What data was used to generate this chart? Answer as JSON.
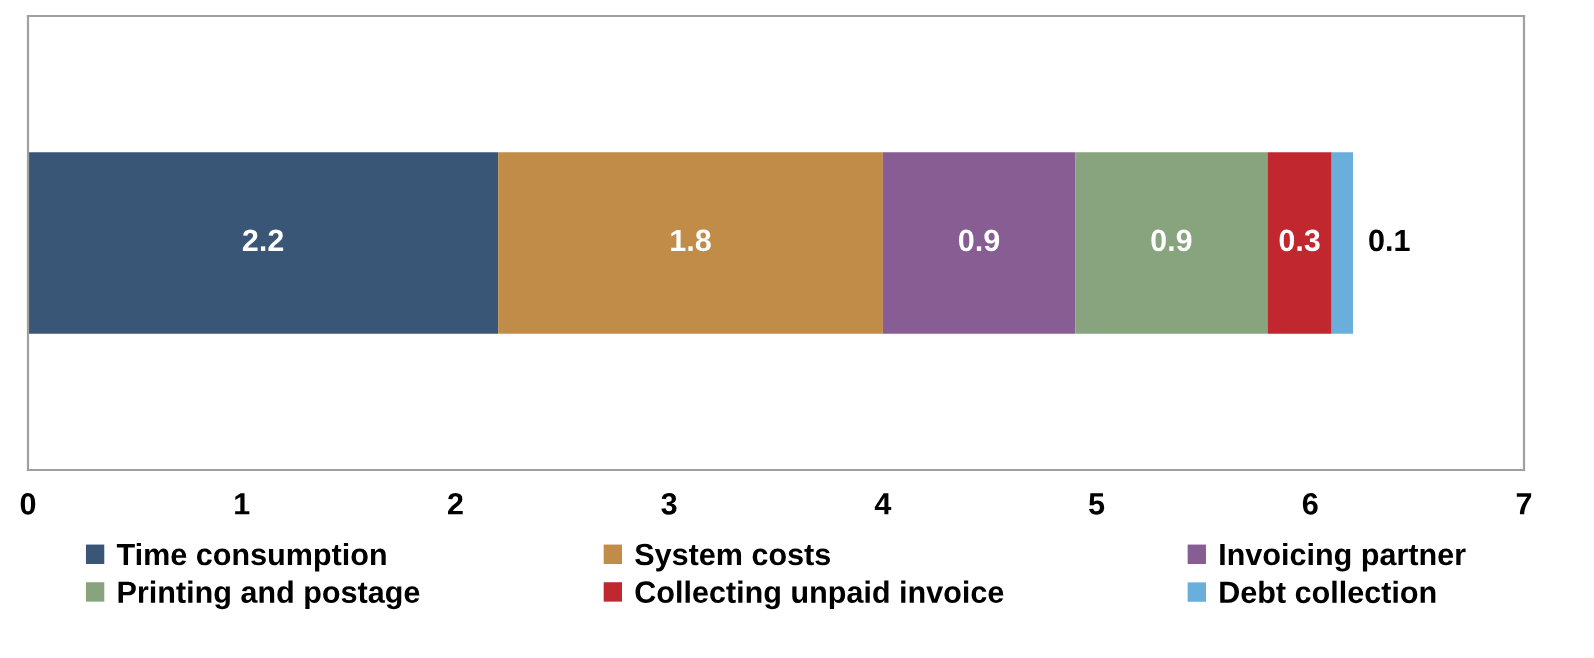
{
  "chart_data": {
    "type": "bar",
    "orientation": "horizontal",
    "stacked": true,
    "categories": [
      null
    ],
    "series": [
      {
        "name": "Time consumption",
        "color": "#3a5676",
        "values": [
          2.2
        ]
      },
      {
        "name": "System costs",
        "color": "#c08c48",
        "values": [
          1.8
        ]
      },
      {
        "name": "Invoicing partner",
        "color": "#875d94",
        "values": [
          0.9
        ]
      },
      {
        "name": "Printing and postage",
        "color": "#88a47e",
        "values": [
          0.9
        ]
      },
      {
        "name": "Collecting unpaid invoice",
        "color": "#c0272f",
        "values": [
          0.3
        ]
      },
      {
        "name": "Debt collection",
        "color": "#6aaedc",
        "values": [
          0.1
        ]
      }
    ],
    "xlim": [
      0,
      7
    ],
    "xticks": [
      0,
      1,
      2,
      3,
      4,
      5,
      6,
      7
    ],
    "data_labels": true,
    "legend": "bottom",
    "grid": false,
    "tick_labels": "x"
  }
}
